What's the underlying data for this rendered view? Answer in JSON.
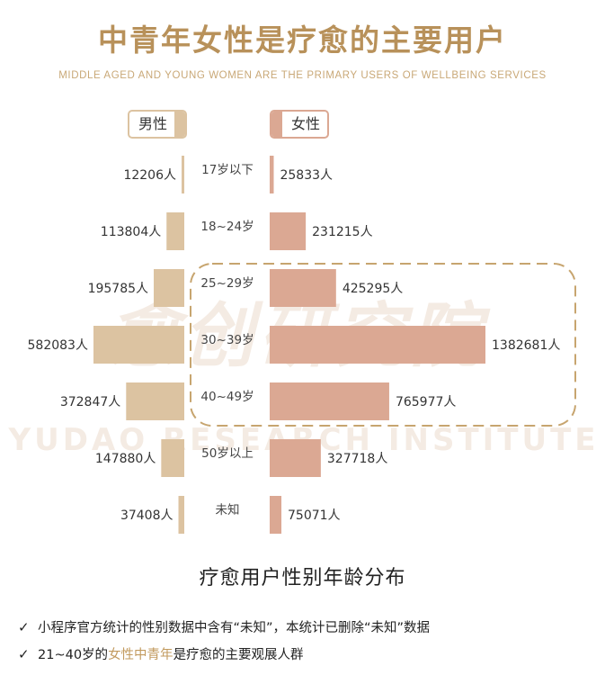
{
  "header": {
    "title": "中青年女性是疗愈的主要用户",
    "subtitle": "MIDDLE AGED AND YOUNG WOMEN ARE THE PRIMARY USERS OF WELLBEING SERVICES"
  },
  "legend": {
    "male_label": "男性",
    "female_label": "女性"
  },
  "watermark": {
    "cn": "愈创研究院",
    "en": "YUDAO RESEARCH INSTITUTE"
  },
  "chart_data": {
    "type": "bar",
    "layout": "population-pyramid",
    "categories": [
      "17岁以下",
      "18~24岁",
      "25~29岁",
      "30~39岁",
      "40~49岁",
      "50岁以上",
      "未知"
    ],
    "series": [
      {
        "name": "男性",
        "values": [
          12206,
          113804,
          195785,
          582083,
          372847,
          147880,
          37408
        ]
      },
      {
        "name": "女性",
        "values": [
          25833,
          231215,
          425295,
          1382681,
          765977,
          327718,
          75071
        ]
      }
    ],
    "value_suffix": "人",
    "highlight_categories": [
      "25~29岁",
      "30~39岁",
      "40~49岁"
    ],
    "colors": {
      "male": "#dcc3a1",
      "female": "#dba893",
      "title": "#b8915a",
      "highlight_border": "#c7a56f"
    },
    "title": "疗愈用户性别年龄分布"
  },
  "notes": [
    {
      "icon": "check-icon",
      "text": "小程序官方统计的性别数据中含有“未知”，本统计已删除“未知”数据"
    },
    {
      "icon": "check-icon",
      "prefix": "21~40岁的",
      "highlight": "女性中青年",
      "suffix": "是疗愈的主要观展人群"
    }
  ],
  "colors": {
    "title_gold": "#b8915a",
    "subtitle_gold": "#c9a877",
    "highlight_text": "#c29a5e",
    "watermark": "#f4ebe3"
  }
}
